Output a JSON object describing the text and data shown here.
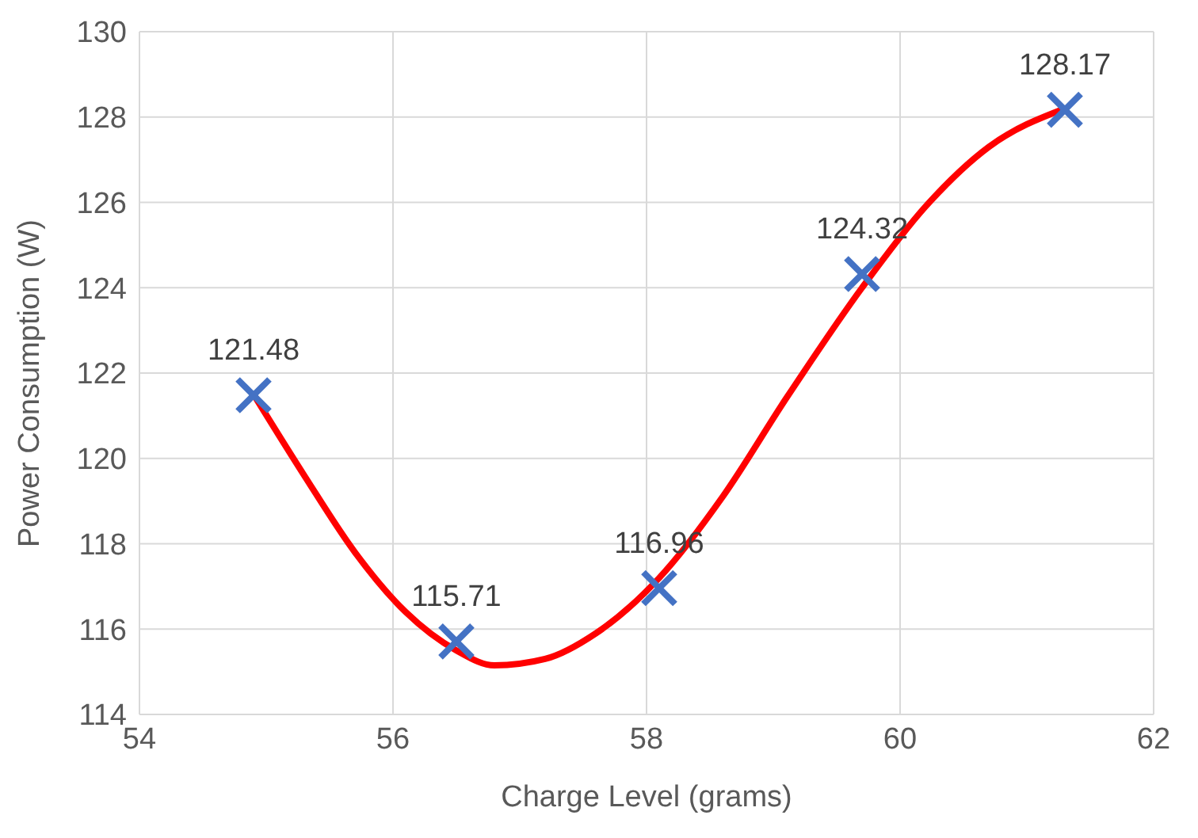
{
  "chart_data": {
    "type": "scatter",
    "xlabel": "Charge Level (grams)",
    "ylabel": "Power Consumption (W)",
    "xlim": [
      54,
      62
    ],
    "xticks": [
      54,
      56,
      58,
      60,
      62
    ],
    "ylim": [
      114,
      130
    ],
    "yticks": [
      114,
      116,
      118,
      120,
      122,
      124,
      126,
      128,
      130
    ],
    "grid": true,
    "series": [
      {
        "color": "#4472c4",
        "marker": "cross",
        "x": [
          54.9,
          56.5,
          58.1,
          59.7,
          61.3
        ],
        "values": [
          121.48,
          115.71,
          116.96,
          124.32,
          128.17
        ],
        "value_labels": [
          "121.48",
          "115.71",
          "116.96",
          "124.32",
          "128.17"
        ]
      },
      {
        "type": "line",
        "marker": "none",
        "line_style": "solid",
        "color": "#ff0000",
        "x": [
          54.9,
          55.3,
          55.7,
          56.1,
          56.5,
          56.8,
          57.2,
          57.6,
          58.1,
          58.6,
          59.1,
          59.7,
          60.2,
          60.7,
          61.3
        ],
        "values": [
          121.5,
          119.6,
          117.8,
          116.4,
          115.5,
          115.15,
          115.3,
          115.9,
          117.2,
          119.1,
          121.4,
          124.0,
          125.9,
          127.3,
          128.2
        ]
      }
    ]
  }
}
